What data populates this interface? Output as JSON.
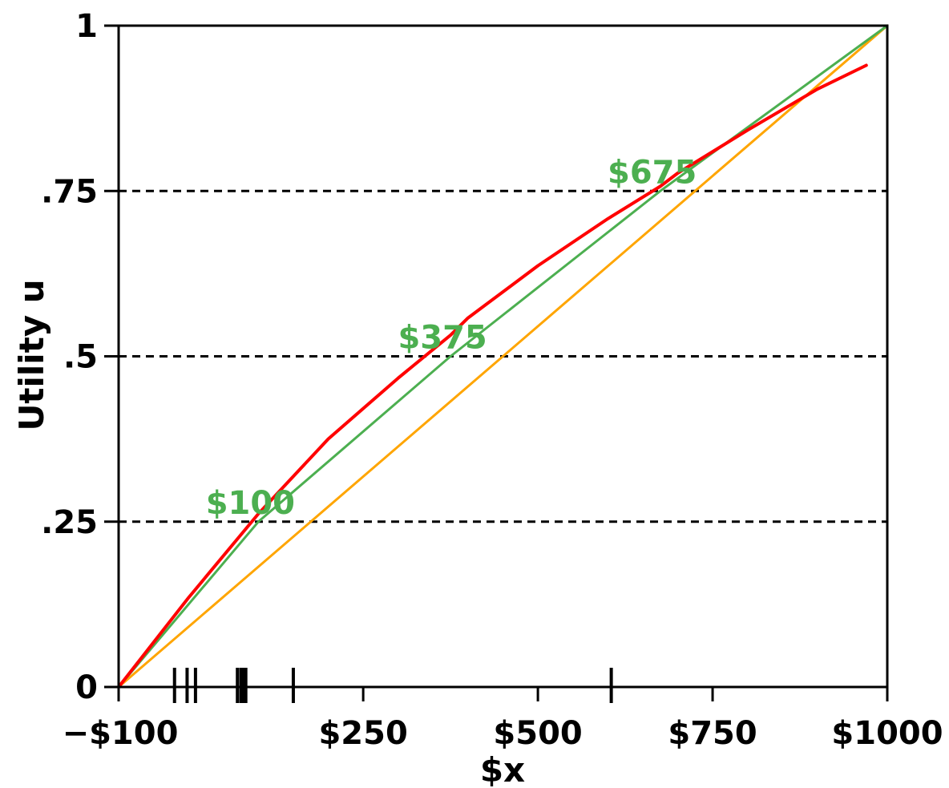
{
  "chart_data": {
    "type": "line",
    "xlabel": "$x",
    "ylabel": "Utility u",
    "xlim": [
      -100,
      1000
    ],
    "ylim": [
      0,
      1
    ],
    "grid": false,
    "x_ticks": [
      {
        "value": -100,
        "label": "−$100"
      },
      {
        "value": 250,
        "label": "$250"
      },
      {
        "value": 500,
        "label": "$500"
      },
      {
        "value": 750,
        "label": "$750"
      },
      {
        "value": 1000,
        "label": "$1000"
      }
    ],
    "y_ticks": [
      {
        "value": 0,
        "label": "0"
      },
      {
        "value": 0.25,
        "label": ".25"
      },
      {
        "value": 0.5,
        "label": ".5"
      },
      {
        "value": 0.75,
        "label": ".75"
      },
      {
        "value": 1,
        "label": "1"
      }
    ],
    "reference_lines": [
      0.25,
      0.5,
      0.75
    ],
    "series": [
      {
        "color": "#ff0000",
        "width": 4,
        "x": [
          -100,
          0,
          100,
          200,
          300,
          375,
          400,
          500,
          600,
          675,
          700,
          800,
          900,
          970
        ],
        "y": [
          0,
          0.135,
          0.262,
          0.375,
          0.467,
          0.532,
          0.558,
          0.637,
          0.708,
          0.757,
          0.777,
          0.842,
          0.904,
          0.94
        ]
      },
      {
        "color": "#4caf50",
        "width": 3,
        "x": [
          -100,
          100,
          375,
          675,
          1000
        ],
        "y": [
          0,
          0.25,
          0.5,
          0.75,
          1
        ]
      },
      {
        "color": "#ffa500",
        "width": 3,
        "x": [
          -100,
          1000
        ],
        "y": [
          0,
          1
        ]
      }
    ],
    "annotations": [
      {
        "text": "$100",
        "x": 100,
        "y": 0.25
      },
      {
        "text": "$375",
        "x": 375,
        "y": 0.5
      },
      {
        "text": "$675",
        "x": 675,
        "y": 0.75
      }
    ],
    "rug_marks_x": [
      -20,
      -2,
      10,
      70,
      75,
      78,
      82,
      150,
      605
    ]
  }
}
